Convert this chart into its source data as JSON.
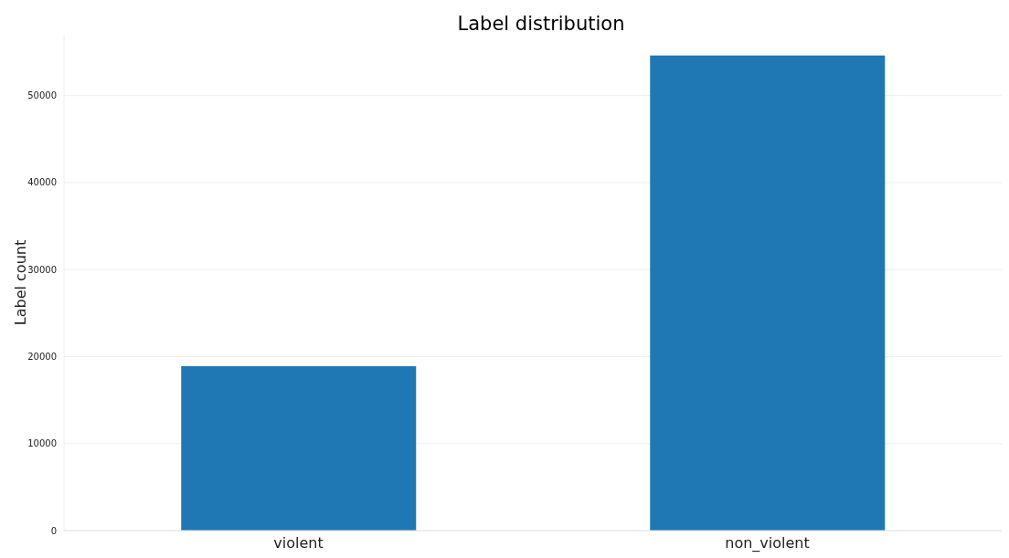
{
  "chart_data": {
    "type": "bar",
    "title": "Label distribution",
    "ylabel": "Label count",
    "categories": [
      "violent",
      "non_violent"
    ],
    "values": [
      18900,
      54600
    ],
    "color": "#1f77b4",
    "ylim": [
      0,
      57000
    ],
    "yticks": [
      0,
      10000,
      20000,
      30000,
      40000,
      50000
    ],
    "grid": "y"
  }
}
